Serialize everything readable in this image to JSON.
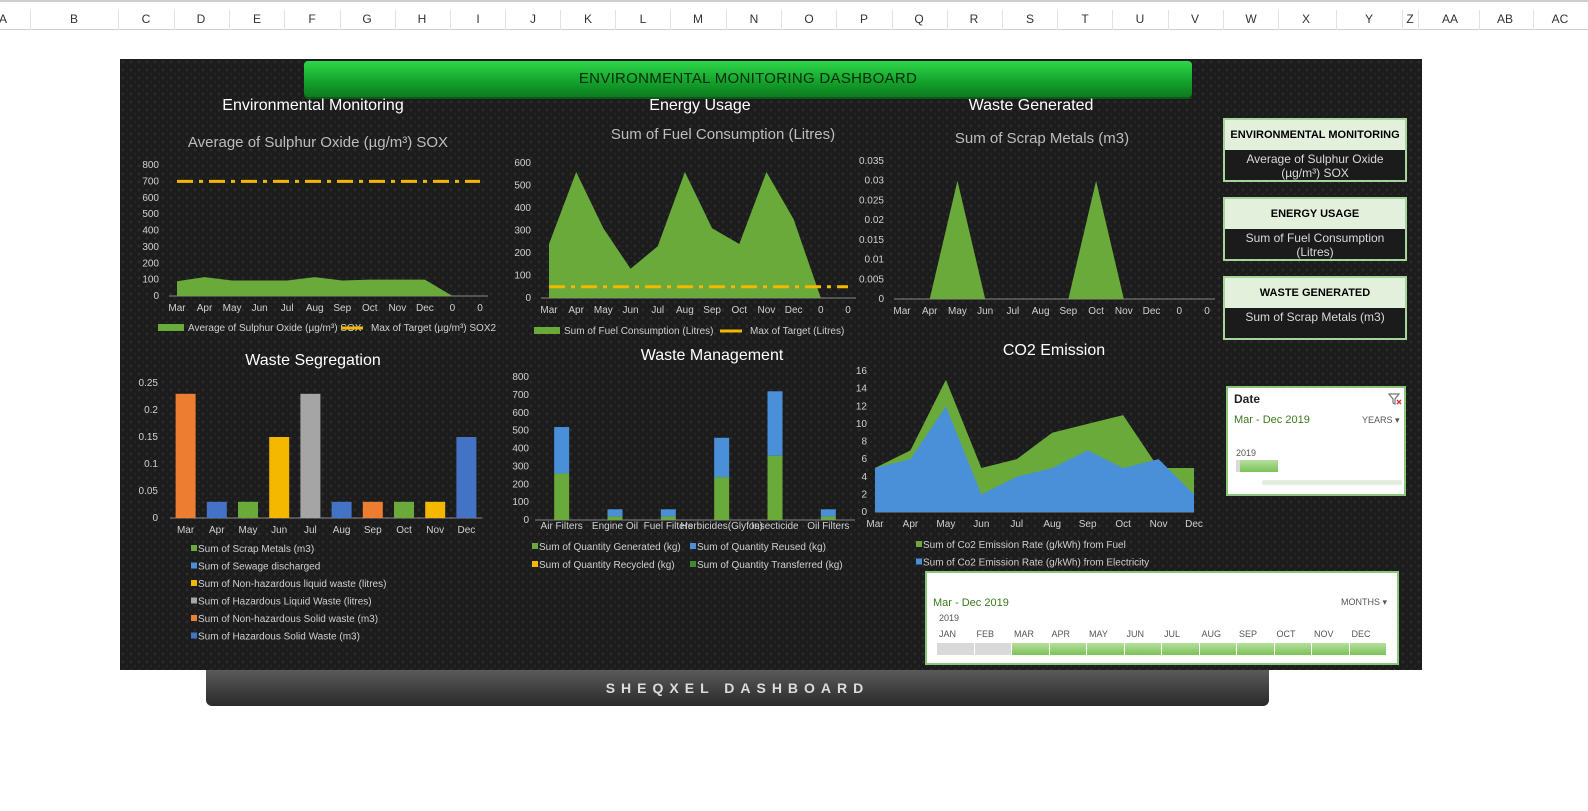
{
  "sheet": {
    "columns": [
      "A",
      "B",
      "C",
      "D",
      "E",
      "F",
      "G",
      "H",
      "I",
      "J",
      "K",
      "L",
      "M",
      "N",
      "O",
      "P",
      "Q",
      "R",
      "S",
      "T",
      "U",
      "V",
      "W",
      "X",
      "Y",
      "Z",
      "AA",
      "AB",
      "AC"
    ]
  },
  "dashboard": {
    "banner_title": "ENVIRONMENTAL MONITORING DASHBOARD",
    "footer_title": "SHEQXEL DASHBOARD"
  },
  "sections": {
    "env_monitoring": "Environmental Monitoring",
    "energy_usage": "Energy Usage",
    "waste_generated": "Waste Generated",
    "waste_segregation": "Waste Segregation",
    "waste_management": "Waste Management",
    "co2_emission": "CO2 Emission"
  },
  "kpis": [
    {
      "head": "ENVIRONMENTAL MONITORING",
      "value": "Average of Sulphur Oxide (µg/m³) SOX"
    },
    {
      "head": "ENERGY USAGE",
      "value": "Sum of Fuel Consumption (Litres)"
    },
    {
      "head": "WASTE GENERATED",
      "value": "Sum of Scrap Metals (m3)"
    }
  ],
  "slicer_year": {
    "title": "Date",
    "range": "Mar - Dec 2019",
    "mode": "YEARS",
    "year": "2019",
    "filter_icon": "clear-filter-icon"
  },
  "slicer_month": {
    "range": "Mar - Dec 2019",
    "mode": "MONTHS",
    "year": "2019",
    "months": [
      "JAN",
      "FEB",
      "MAR",
      "APR",
      "MAY",
      "JUN",
      "JUL",
      "AUG",
      "SEP",
      "OCT",
      "NOV",
      "DEC"
    ],
    "selected": [
      false,
      false,
      true,
      true,
      true,
      true,
      true,
      true,
      true,
      true,
      true,
      true
    ]
  },
  "colors": {
    "green": "#6aaa3a",
    "gold": "#f5b800",
    "blue": "#4a90d9",
    "orange": "#ed7d31",
    "gray": "#a5a5a5",
    "blue_dark": "#4472c4"
  },
  "chart_data": [
    {
      "id": "sox",
      "type": "area",
      "title": "Average of Sulphur Oxide (µg/m³) SOX",
      "categories": [
        "Mar",
        "Apr",
        "May",
        "Jun",
        "Jul",
        "Aug",
        "Sep",
        "Oct",
        "Nov",
        "Dec",
        "0",
        "0"
      ],
      "series": [
        {
          "name": "Average of Sulphur Oxide (µg/m³) SOX",
          "type": "area",
          "values": [
            90,
            115,
            95,
            95,
            95,
            115,
            95,
            100,
            100,
            100,
            0,
            0
          ]
        },
        {
          "name": "Max of Target (µg/m³) SOX2",
          "type": "dashed-line",
          "values": [
            700,
            700,
            700,
            700,
            700,
            700,
            700,
            700,
            700,
            700,
            700,
            700
          ]
        }
      ],
      "ylim": [
        0,
        800
      ],
      "yticks": [
        0,
        100,
        200,
        300,
        400,
        500,
        600,
        700,
        800
      ]
    },
    {
      "id": "fuel",
      "type": "area",
      "title": "Sum of Fuel Consumption (Litres)",
      "categories": [
        "Mar",
        "Apr",
        "May",
        "Jun",
        "Jul",
        "Aug",
        "Sep",
        "Oct",
        "Nov",
        "Dec",
        "0",
        "0"
      ],
      "series": [
        {
          "name": "Sum of Fuel Consumption (Litres)",
          "type": "area",
          "values": [
            240,
            560,
            310,
            130,
            230,
            560,
            310,
            240,
            560,
            350,
            0,
            0
          ]
        },
        {
          "name": "Max of Target (Litres)",
          "type": "dashed-line",
          "values": [
            50,
            50,
            50,
            50,
            50,
            50,
            50,
            50,
            50,
            50,
            50,
            50
          ]
        }
      ],
      "ylim": [
        0,
        600
      ],
      "yticks": [
        0,
        100,
        200,
        300,
        400,
        500,
        600
      ]
    },
    {
      "id": "scrap",
      "type": "area",
      "title": "Sum of Scrap Metals (m3)",
      "categories": [
        "Mar",
        "Apr",
        "May",
        "Jun",
        "Jul",
        "Aug",
        "Sep",
        "Oct",
        "Nov",
        "Dec",
        "0",
        "0"
      ],
      "series": [
        {
          "name": "Sum of Scrap Metals (m3)",
          "type": "area",
          "values": [
            0,
            0,
            0.03,
            0,
            0,
            0,
            0,
            0.03,
            0,
            0,
            0,
            0
          ]
        }
      ],
      "ylim": [
        0,
        0.035
      ],
      "yticks": [
        0,
        0.005,
        0.01,
        0.015,
        0.02,
        0.025,
        0.03,
        0.035
      ]
    },
    {
      "id": "segregation",
      "type": "bar",
      "categories": [
        "Mar",
        "Apr",
        "May",
        "Jun",
        "Jul",
        "Aug",
        "Sep",
        "Oct",
        "Nov",
        "Dec"
      ],
      "values": [
        0.23,
        0.03,
        0.03,
        0.15,
        0.23,
        0.03,
        0.03,
        0.03,
        0.03,
        0.15
      ],
      "bar_colors": [
        "#ed7d31",
        "#4472c4",
        "#6aaa3a",
        "#f5b800",
        "#a5a5a5",
        "#4472c4",
        "#ed7d31",
        "#6aaa3a",
        "#f5b800",
        "#4472c4"
      ],
      "legend": [
        {
          "name": "Sum of Scrap Metals (m3)",
          "color": "#6aaa3a"
        },
        {
          "name": "Sum of Sewage discharged",
          "color": "#4a90d9"
        },
        {
          "name": "Sum of Non-hazardous liquid waste (litres)",
          "color": "#f5b800"
        },
        {
          "name": "Sum of Hazardous Liquid Waste (litres)",
          "color": "#a5a5a5"
        },
        {
          "name": "Sum of Non-hazardous Solid waste (m3)",
          "color": "#ed7d31"
        },
        {
          "name": "Sum of Hazardous Solid Waste (m3)",
          "color": "#4472c4"
        }
      ],
      "ylim": [
        0,
        0.25
      ],
      "yticks": [
        0,
        0.05,
        0.1,
        0.15,
        0.2,
        0.25
      ]
    },
    {
      "id": "wastemgmt",
      "type": "bar",
      "stacked": true,
      "categories": [
        "Air Filters",
        "Engine Oil",
        "Fuel Filters",
        "Herbicides(Glyfos)",
        "Insecticide",
        "Oil Filters"
      ],
      "series": [
        {
          "name": "Sum of Quantity Generated (kg)",
          "color": "#6aaa3a",
          "values": [
            260,
            20,
            20,
            240,
            360,
            20
          ]
        },
        {
          "name": "Sum of Quantity Reused (kg)",
          "color": "#4a90d9",
          "values": [
            260,
            40,
            40,
            220,
            360,
            40
          ]
        },
        {
          "name": "Sum of Quantity Recycled (kg)",
          "color": "#f5b800",
          "values": [
            0,
            0,
            0,
            0,
            0,
            0
          ]
        },
        {
          "name": "Sum of Quantity Transferred (kg)",
          "color": "#3d8b2f",
          "values": [
            0,
            0,
            0,
            0,
            0,
            0
          ]
        }
      ],
      "ylim": [
        0,
        800
      ],
      "yticks": [
        0,
        100,
        200,
        300,
        400,
        500,
        600,
        700,
        800
      ]
    },
    {
      "id": "co2",
      "type": "area",
      "categories": [
        "Mar",
        "Apr",
        "May",
        "Jun",
        "Jul",
        "Aug",
        "Sep",
        "Oct",
        "Nov",
        "Dec"
      ],
      "series": [
        {
          "name": "Sum of Co2 Emission Rate (g/kWh) from Fuel",
          "color": "#6aaa3a",
          "values": [
            5,
            7,
            15,
            5,
            6,
            9,
            10,
            11,
            5,
            5
          ]
        },
        {
          "name": "Sum of Co2 Emission Rate (g/kWh) from Electricity",
          "color": "#4a90d9",
          "values": [
            5,
            6,
            12,
            2,
            4,
            5,
            7,
            5,
            6,
            2
          ]
        }
      ],
      "ylim": [
        0,
        16
      ],
      "yticks": [
        0,
        2,
        4,
        6,
        8,
        10,
        12,
        14,
        16
      ]
    }
  ]
}
